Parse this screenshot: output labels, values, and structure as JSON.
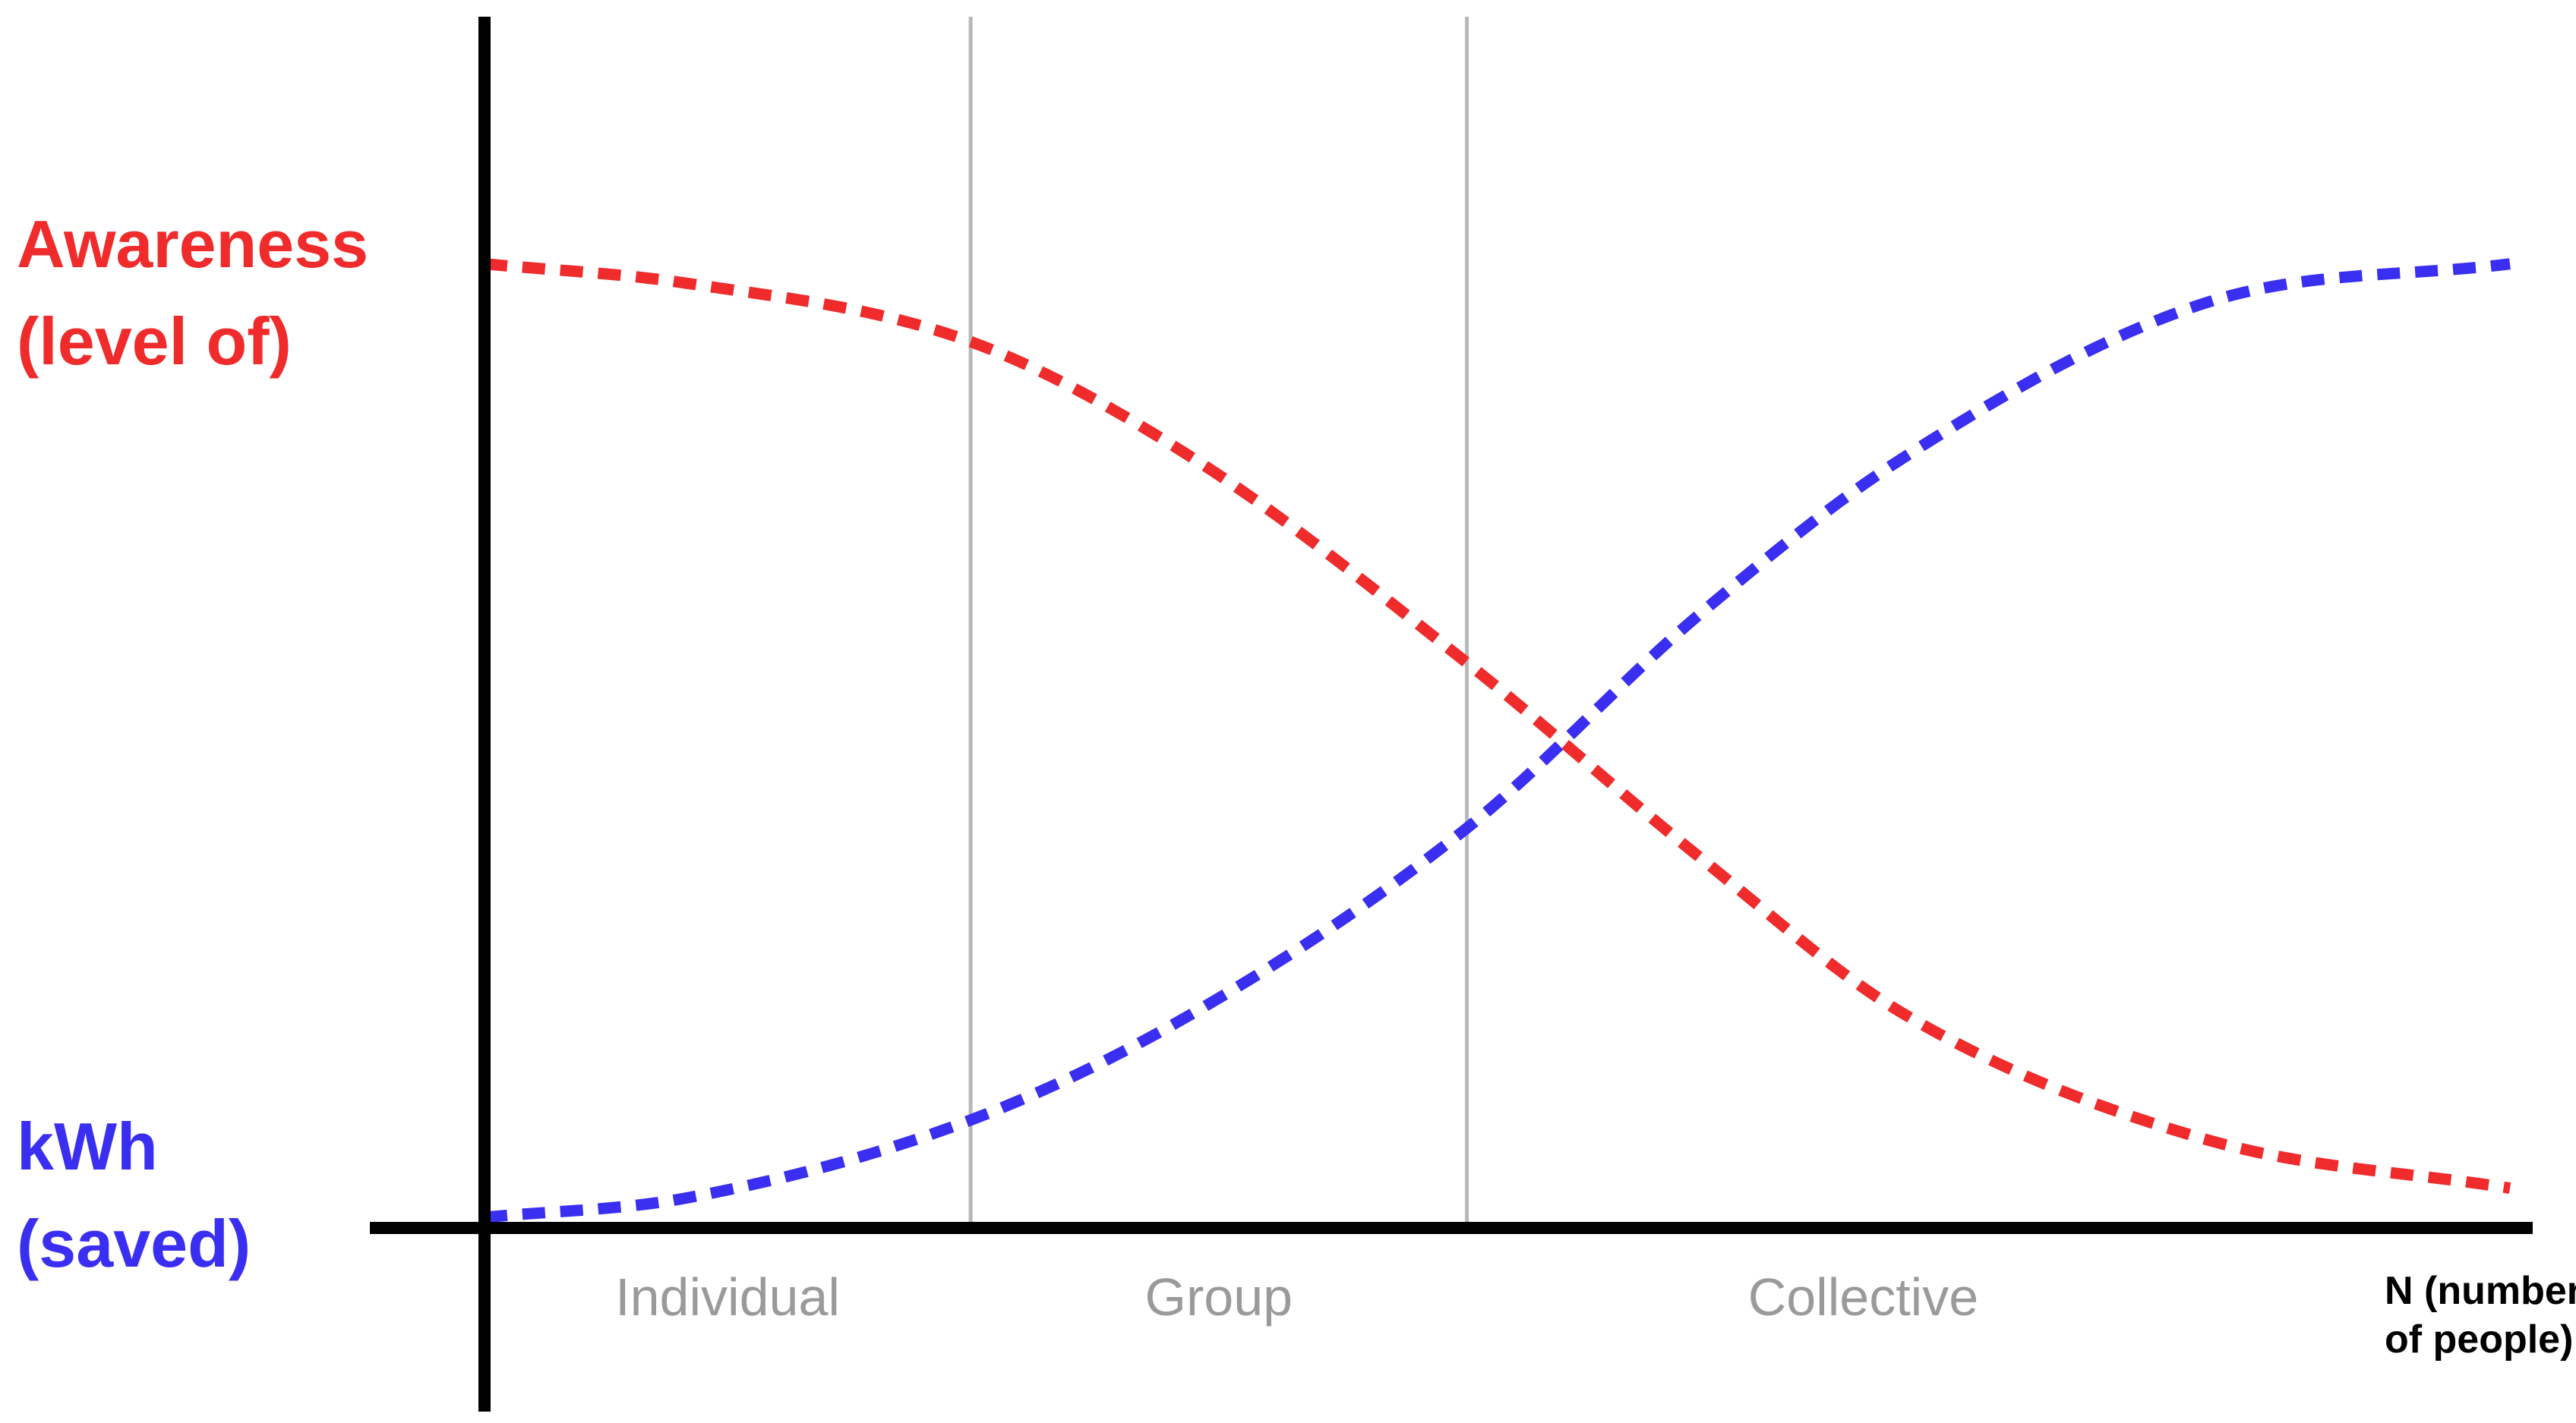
{
  "chart_data": {
    "type": "line",
    "title": "",
    "xlabel": "N (number of people)",
    "xlabel_lines": [
      "N (number",
      "of people)"
    ],
    "xlim": [
      0,
      1
    ],
    "ylim": [
      0,
      1
    ],
    "grid": false,
    "legend": "none",
    "y_axis_labels": [
      {
        "series": "awareness",
        "lines": [
          "Awareness",
          "(level of)"
        ],
        "color": "#ef2b2b"
      },
      {
        "series": "kwh",
        "lines": [
          "kWh",
          "(saved)"
        ],
        "color": "#3a2ff0"
      }
    ],
    "phases": [
      {
        "label": "Individual",
        "start": 0.0,
        "end": 0.24
      },
      {
        "label": "Group",
        "start": 0.24,
        "end": 0.485
      },
      {
        "label": "Collective",
        "start": 0.485,
        "end": 1.0
      }
    ],
    "phase_boundaries": [
      0.24,
      0.485
    ],
    "series": [
      {
        "id": "awareness",
        "color": "#ef2b2b",
        "style": "dashed",
        "x": [
          0,
          0.1,
          0.24,
          0.35,
          0.485,
          0.6,
          0.7,
          0.85,
          1.0
        ],
        "y": [
          0.98,
          0.96,
          0.9,
          0.78,
          0.57,
          0.37,
          0.21,
          0.08,
          0.03
        ]
      },
      {
        "id": "kwh",
        "color": "#3a2ff0",
        "style": "dashed",
        "x": [
          0,
          0.1,
          0.24,
          0.35,
          0.485,
          0.6,
          0.7,
          0.85,
          1.0
        ],
        "y": [
          0.0,
          0.02,
          0.1,
          0.21,
          0.4,
          0.62,
          0.78,
          0.94,
          0.98
        ]
      }
    ]
  }
}
